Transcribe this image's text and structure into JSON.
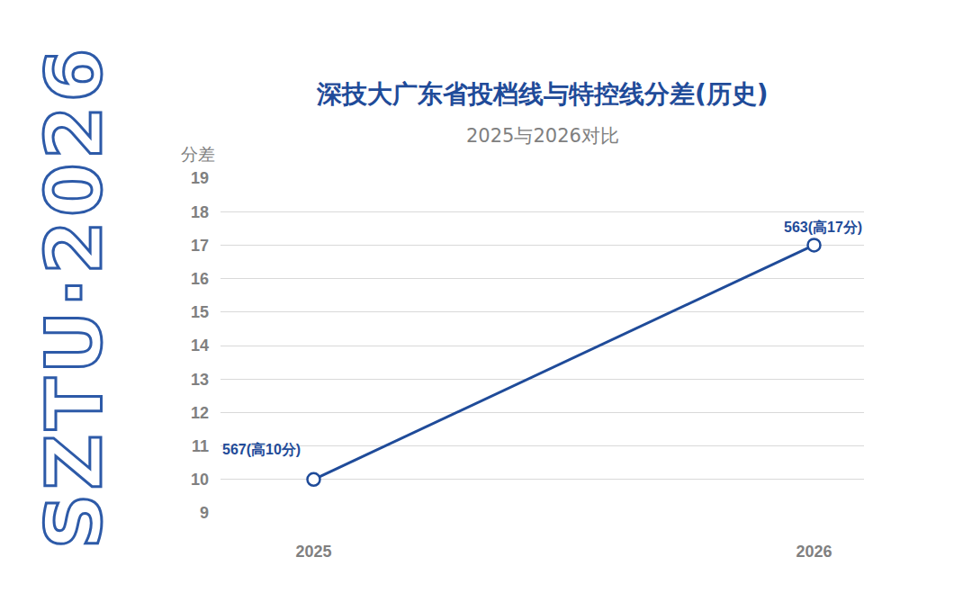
{
  "chart_data": {
    "type": "line",
    "title": "深技大广东省投档线与特控线分差(历史)",
    "subtitle": "2025与2026对比",
    "y_label": "分差",
    "side_text": "SZTU·2026",
    "categories": [
      "2025",
      "2026"
    ],
    "values": [
      10,
      17
    ],
    "value_labels": [
      "567(高10分)",
      "563(高17分)"
    ],
    "data_labels": true,
    "color": "#1f4b99",
    "marker": "open circle",
    "line_style": "solid",
    "ylim": [
      9,
      19
    ],
    "yticks": [
      9,
      10,
      11,
      12,
      13,
      14,
      15,
      16,
      17,
      18,
      19
    ],
    "grid": true
  }
}
